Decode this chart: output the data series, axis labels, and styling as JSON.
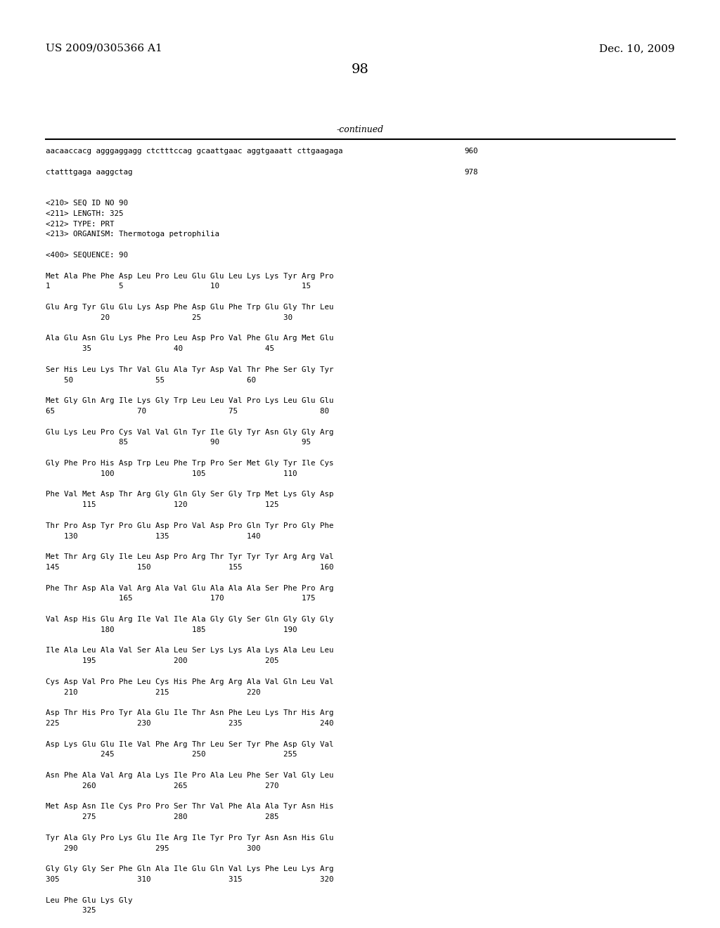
{
  "background_color": "#ffffff",
  "header_left": "US 2009/0305366 A1",
  "header_right": "Dec. 10, 2009",
  "page_number": "98",
  "continued_label": "-continued",
  "content_blocks": [
    {
      "row": 0,
      "text": "aacaaccacg agggaggagg ctctttccag gcaattgaac aggtgaaatt cttgaagaga",
      "num": "960"
    },
    {
      "row": 2,
      "text": "ctatttgaga aaggctag",
      "num": "978"
    },
    {
      "row": 5,
      "text": "<210> SEQ ID NO 90"
    },
    {
      "row": 6,
      "text": "<211> LENGTH: 325"
    },
    {
      "row": 7,
      "text": "<212> TYPE: PRT"
    },
    {
      "row": 8,
      "text": "<213> ORGANISM: Thermotoga petrophilia"
    },
    {
      "row": 10,
      "text": "<400> SEQUENCE: 90"
    },
    {
      "row": 12,
      "text": "Met Ala Phe Phe Asp Leu Pro Leu Glu Glu Leu Lys Lys Tyr Arg Pro"
    },
    {
      "row": 13,
      "text": "1               5                   10                  15"
    },
    {
      "row": 15,
      "text": "Glu Arg Tyr Glu Glu Lys Asp Phe Asp Glu Phe Trp Glu Gly Thr Leu"
    },
    {
      "row": 16,
      "text": "            20                  25                  30"
    },
    {
      "row": 18,
      "text": "Ala Glu Asn Glu Lys Phe Pro Leu Asp Pro Val Phe Glu Arg Met Glu"
    },
    {
      "row": 19,
      "text": "        35                  40                  45"
    },
    {
      "row": 21,
      "text": "Ser His Leu Lys Thr Val Glu Ala Tyr Asp Val Thr Phe Ser Gly Tyr"
    },
    {
      "row": 22,
      "text": "    50                  55                  60"
    },
    {
      "row": 24,
      "text": "Met Gly Gln Arg Ile Lys Gly Trp Leu Leu Val Pro Lys Leu Glu Glu"
    },
    {
      "row": 25,
      "text": "65                  70                  75                  80"
    },
    {
      "row": 27,
      "text": "Glu Lys Leu Pro Cys Val Val Gln Tyr Ile Gly Tyr Asn Gly Gly Arg"
    },
    {
      "row": 28,
      "text": "                85                  90                  95"
    },
    {
      "row": 30,
      "text": "Gly Phe Pro His Asp Trp Leu Phe Trp Pro Ser Met Gly Tyr Ile Cys"
    },
    {
      "row": 31,
      "text": "            100                 105                 110"
    },
    {
      "row": 33,
      "text": "Phe Val Met Asp Thr Arg Gly Gln Gly Ser Gly Trp Met Lys Gly Asp"
    },
    {
      "row": 34,
      "text": "        115                 120                 125"
    },
    {
      "row": 36,
      "text": "Thr Pro Asp Tyr Pro Glu Asp Pro Val Asp Pro Gln Tyr Pro Gly Phe"
    },
    {
      "row": 37,
      "text": "    130                 135                 140"
    },
    {
      "row": 39,
      "text": "Met Thr Arg Gly Ile Leu Asp Pro Arg Thr Tyr Tyr Tyr Arg Arg Val"
    },
    {
      "row": 40,
      "text": "145                 150                 155                 160"
    },
    {
      "row": 42,
      "text": "Phe Thr Asp Ala Val Arg Ala Val Glu Ala Ala Ala Ser Phe Pro Arg"
    },
    {
      "row": 43,
      "text": "                165                 170                 175"
    },
    {
      "row": 45,
      "text": "Val Asp His Glu Arg Ile Val Ile Ala Gly Gly Ser Gln Gly Gly Gly"
    },
    {
      "row": 46,
      "text": "            180                 185                 190"
    },
    {
      "row": 48,
      "text": "Ile Ala Leu Ala Val Ser Ala Leu Ser Lys Lys Ala Lys Ala Leu Leu"
    },
    {
      "row": 49,
      "text": "        195                 200                 205"
    },
    {
      "row": 51,
      "text": "Cys Asp Val Pro Phe Leu Cys His Phe Arg Arg Ala Val Gln Leu Val"
    },
    {
      "row": 52,
      "text": "    210                 215                 220"
    },
    {
      "row": 54,
      "text": "Asp Thr His Pro Tyr Ala Glu Ile Thr Asn Phe Leu Lys Thr His Arg"
    },
    {
      "row": 55,
      "text": "225                 230                 235                 240"
    },
    {
      "row": 57,
      "text": "Asp Lys Glu Glu Ile Val Phe Arg Thr Leu Ser Tyr Phe Asp Gly Val"
    },
    {
      "row": 58,
      "text": "            245                 250                 255"
    },
    {
      "row": 60,
      "text": "Asn Phe Ala Val Arg Ala Lys Ile Pro Ala Leu Phe Ser Val Gly Leu"
    },
    {
      "row": 61,
      "text": "        260                 265                 270"
    },
    {
      "row": 63,
      "text": "Met Asp Asn Ile Cys Pro Pro Ser Thr Val Phe Ala Ala Tyr Asn His"
    },
    {
      "row": 64,
      "text": "        275                 280                 285"
    },
    {
      "row": 66,
      "text": "Tyr Ala Gly Pro Lys Glu Ile Arg Ile Tyr Pro Tyr Asn Asn His Glu"
    },
    {
      "row": 67,
      "text": "    290                 295                 300"
    },
    {
      "row": 69,
      "text": "Gly Gly Gly Ser Phe Gln Ala Ile Glu Gln Val Lys Phe Leu Lys Arg"
    },
    {
      "row": 70,
      "text": "305                 310                 315                 320"
    },
    {
      "row": 72,
      "text": "Leu Phe Glu Lys Gly"
    },
    {
      "row": 73,
      "text": "        325"
    }
  ]
}
